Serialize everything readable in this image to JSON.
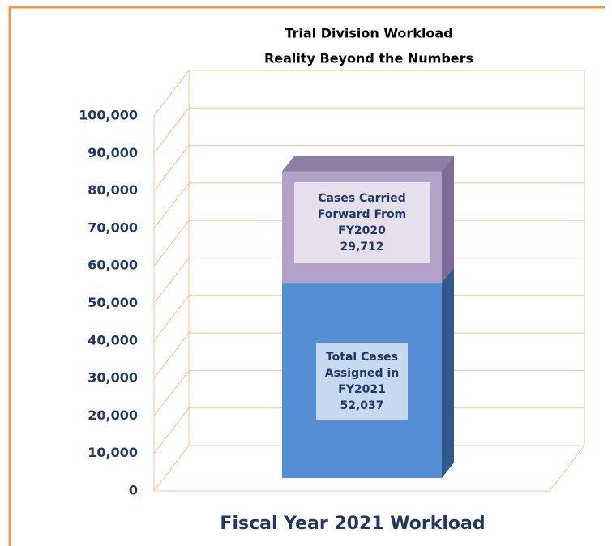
{
  "chart_data": {
    "type": "stacked-bar-3d",
    "title": "Trial Division Workload",
    "subtitle": "Reality  Beyond the Numbers",
    "x_label": "Fiscal Year 2021 Workload",
    "ylim": [
      0,
      100000
    ],
    "yticks": [
      0,
      {
        "value": 10000,
        "label": "10,000"
      },
      {
        "value": 20000,
        "label": "20,000"
      },
      {
        "value": 30000,
        "label": "30,000"
      },
      {
        "value": 40000,
        "label": "40,000"
      },
      {
        "value": 50000,
        "label": "50,000"
      },
      {
        "value": 60000,
        "label": "60,000"
      },
      {
        "value": 70000,
        "label": "70,000"
      },
      {
        "value": 80000,
        "label": "80,000"
      },
      {
        "value": 90000,
        "label": "90,000"
      },
      {
        "value": 100000,
        "label": "100,000"
      }
    ],
    "grid": true,
    "series": [
      {
        "name": "Total Cases Assigned in FY2021",
        "color": "#558ed5",
        "values": [
          52037
        ],
        "value_labels": [
          "52,037"
        ]
      },
      {
        "name": "Cases Carried Forward From FY2020",
        "color": "#b3a2c7",
        "values": [
          29712
        ],
        "value_labels": [
          "29,712"
        ]
      }
    ]
  }
}
